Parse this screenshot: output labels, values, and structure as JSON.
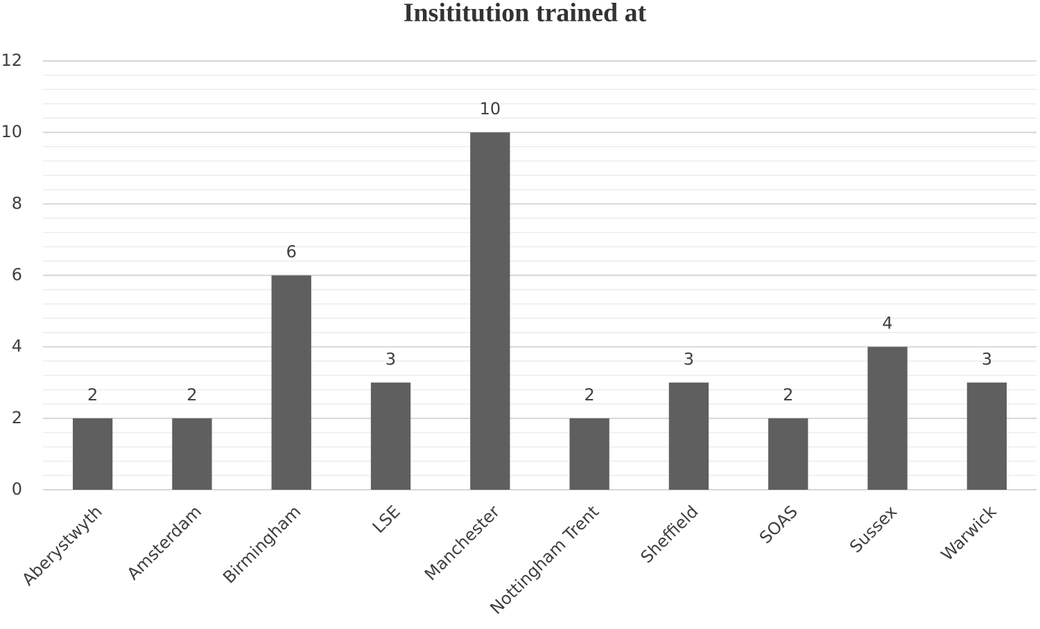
{
  "chart_data": {
    "type": "bar",
    "title": "Insititution trained at",
    "categories": [
      "Aberystwyth",
      "Amsterdam",
      "Birmingham",
      "LSE",
      "Manchester",
      "Nottingham Trent",
      "Sheffield",
      "SOAS",
      "Sussex",
      "Warwick"
    ],
    "values": [
      2,
      2,
      6,
      3,
      10,
      2,
      3,
      2,
      4,
      3
    ],
    "color": "#5f5f5f",
    "ylim": [
      0,
      12
    ],
    "yticks": [
      0,
      2,
      4,
      6,
      8,
      10,
      12
    ],
    "grid": true,
    "minor_grid_divisions": 5,
    "data_labels": true
  }
}
